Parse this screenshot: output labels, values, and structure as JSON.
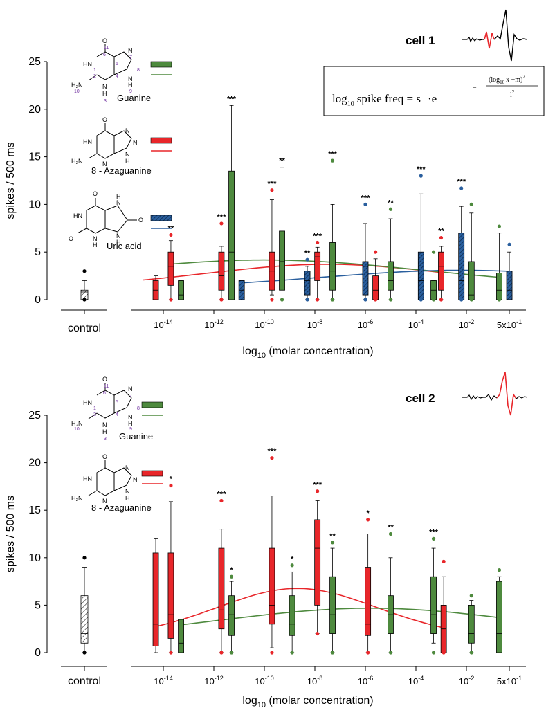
{
  "figure": {
    "equation": {
      "main": "log",
      "sub10": "10",
      "rest": "spike freq = s",
      "dot_e": "·e",
      "minus": "−",
      "num": "(log",
      "num_sub": "10",
      "num_rest": "x −m)",
      "num_sup": "2",
      "den": "l",
      "den_sup": "2"
    },
    "molecules": {
      "guanine_name": "Guanine",
      "azaguanine_name": "8 - Azaguanine",
      "uric_acid_name": "Uric acid"
    }
  },
  "series_colors": {
    "Guanine": "#4e8a3e",
    "8 - Azaguanine": "#e8262a",
    "Uric acid": "#2a5f9e"
  },
  "chart_data": [
    {
      "type": "box",
      "title": "cell 1",
      "ylabel": "spikes / 500 ms",
      "xlabel": "log10 (molar concentration)",
      "xlabel_base": "log",
      "xlabel_sub": "10",
      "xlabel_rest": " (molar concentration)",
      "ylim": [
        0,
        25
      ],
      "yticks": [
        0,
        5,
        10,
        15,
        20,
        25
      ],
      "xlim_log": [
        -15.2,
        0.2
      ],
      "xticks": [
        {
          "log": -14,
          "base": "10",
          "exp": "-14"
        },
        {
          "log": -12,
          "base": "10",
          "exp": "-12"
        },
        {
          "log": -10,
          "base": "10",
          "exp": "-10"
        },
        {
          "log": -8,
          "base": "10",
          "exp": "-8"
        },
        {
          "log": -6,
          "base": "10",
          "exp": "-6"
        },
        {
          "log": -4,
          "base": "10",
          "exp": "-4"
        },
        {
          "log": -2,
          "base": "10",
          "exp": "-2"
        },
        {
          "log": -0.301,
          "base": "5x10",
          "exp": "-1"
        }
      ],
      "control": {
        "label": "control",
        "q1": 0,
        "median": 0.8,
        "q3": 1,
        "whisker_low": 0,
        "whisker_high": 2,
        "outliers": [
          3,
          0
        ]
      },
      "boxes": [
        {
          "series": "8 - Azaguanine",
          "x": -14.3,
          "q1": 0,
          "median": 1,
          "q3": 2,
          "whisker_low": 0,
          "whisker_high": 2.5,
          "outliers": [],
          "sig": ""
        },
        {
          "series": "8 - Azaguanine",
          "x": -13.7,
          "q1": 1.5,
          "median": 3.5,
          "q3": 5,
          "whisker_low": 0,
          "whisker_high": 6.2,
          "outliers": [
            6.8,
            0
          ],
          "sig": "**"
        },
        {
          "series": "Guanine",
          "x": -13.3,
          "q1": 0,
          "median": 0.5,
          "q3": 2,
          "whisker_low": 0,
          "whisker_high": 2,
          "outliers": [],
          "sig": ""
        },
        {
          "series": "8 - Azaguanine",
          "x": -11.7,
          "q1": 1,
          "median": 2.5,
          "q3": 5,
          "whisker_low": 0,
          "whisker_high": 5.6,
          "outliers": [
            8,
            0
          ],
          "sig": "***"
        },
        {
          "series": "Guanine",
          "x": -11.3,
          "q1": 0,
          "median": 5,
          "q3": 13.5,
          "whisker_low": 0,
          "whisker_high": 20.4,
          "outliers": [],
          "sig": "***"
        },
        {
          "series": "Uric acid",
          "x": -10.9,
          "q1": 0,
          "median": 1,
          "q3": 2,
          "whisker_low": 0,
          "whisker_high": 2,
          "outliers": [],
          "sig": ""
        },
        {
          "series": "8 - Azaguanine",
          "x": -9.7,
          "q1": 1,
          "median": 3,
          "q3": 5,
          "whisker_low": 0.5,
          "whisker_high": 10.5,
          "outliers": [
            11.5,
            0
          ],
          "sig": "***"
        },
        {
          "series": "Guanine",
          "x": -9.3,
          "q1": 1,
          "median": 4,
          "q3": 7.2,
          "whisker_low": 0,
          "whisker_high": 13.9,
          "outliers": [
            0
          ],
          "sig": "**"
        },
        {
          "series": "Uric acid",
          "x": -8.3,
          "q1": 0.5,
          "median": 2,
          "q3": 3,
          "whisker_low": 0,
          "whisker_high": 3.5,
          "outliers": [
            4.2,
            0
          ],
          "sig": "**"
        },
        {
          "series": "8 - Azaguanine",
          "x": -7.9,
          "q1": 2,
          "median": 4.5,
          "q3": 5,
          "whisker_low": 0,
          "whisker_high": 5.5,
          "outliers": [
            6,
            0
          ],
          "sig": "***"
        },
        {
          "series": "Guanine",
          "x": -7.3,
          "q1": 1,
          "median": 3,
          "q3": 6,
          "whisker_low": 0,
          "whisker_high": 10,
          "outliers": [
            14.6,
            0
          ],
          "sig": "***"
        },
        {
          "series": "Uric acid",
          "x": -6.0,
          "q1": 0.5,
          "median": 3.5,
          "q3": 4,
          "whisker_low": 0,
          "whisker_high": 8,
          "outliers": [
            10,
            0
          ],
          "sig": "***"
        },
        {
          "series": "8 - Azaguanine",
          "x": -5.6,
          "q1": 0,
          "median": 1,
          "q3": 2.5,
          "whisker_low": 0,
          "whisker_high": 4.3,
          "outliers": [
            5,
            0
          ],
          "sig": ""
        },
        {
          "series": "Guanine",
          "x": -5.0,
          "q1": 1,
          "median": 2,
          "q3": 4,
          "whisker_low": 0,
          "whisker_high": 8.5,
          "outliers": [
            9.5,
            0
          ],
          "sig": "**"
        },
        {
          "series": "Uric acid",
          "x": -3.8,
          "q1": 0,
          "median": 2,
          "q3": 5,
          "whisker_low": 0,
          "whisker_high": 11.1,
          "outliers": [
            13,
            0
          ],
          "sig": "***"
        },
        {
          "series": "Guanine",
          "x": -3.3,
          "q1": 0,
          "median": 1,
          "q3": 2,
          "whisker_low": 0,
          "whisker_high": 2,
          "outliers": [
            5,
            0
          ],
          "sig": ""
        },
        {
          "series": "8 - Azaguanine",
          "x": -3.0,
          "q1": 1,
          "median": 3.5,
          "q3": 5,
          "whisker_low": 0,
          "whisker_high": 5.6,
          "outliers": [
            6.5,
            0
          ],
          "sig": "**"
        },
        {
          "series": "Uric acid",
          "x": -2.2,
          "q1": 0,
          "median": 2,
          "q3": 7,
          "whisker_low": 0,
          "whisker_high": 9.8,
          "outliers": [
            11.7,
            0
          ],
          "sig": "***"
        },
        {
          "series": "Guanine",
          "x": -1.8,
          "q1": 0,
          "median": 0.5,
          "q3": 4,
          "whisker_low": 0,
          "whisker_high": 9.1,
          "outliers": [
            10,
            0
          ],
          "sig": ""
        },
        {
          "series": "Guanine",
          "x": -0.7,
          "q1": 0,
          "median": 1,
          "q3": 2.8,
          "whisker_low": 0,
          "whisker_high": 7,
          "outliers": [
            7.7,
            0
          ],
          "sig": ""
        },
        {
          "series": "Uric acid",
          "x": -0.3,
          "q1": 0,
          "median": 1,
          "q3": 3,
          "whisker_low": 0,
          "whisker_high": 5,
          "outliers": [
            5.8
          ],
          "sig": ""
        }
      ],
      "fits": [
        {
          "series": "8 - Azaguanine",
          "s": 0.57,
          "m": -7.5,
          "l": 9.5,
          "x_range": [
            -14.8,
            -3.0
          ]
        },
        {
          "series": "Guanine",
          "s": 0.62,
          "m": -10.0,
          "l": 13.0,
          "x_range": [
            -13.7,
            -0.7
          ]
        },
        {
          "series": "Uric acid",
          "s": 0.49,
          "m": -2.2,
          "l": 10.5,
          "x_range": [
            -10.9,
            -0.3
          ]
        }
      ],
      "legend": [
        {
          "series": "Guanine"
        },
        {
          "series": "8 - Azaguanine"
        },
        {
          "series": "Uric acid"
        }
      ]
    },
    {
      "type": "box",
      "title": "cell 2",
      "ylabel": "spikes / 500 ms",
      "xlabel": "log10 (molar concentration)",
      "xlabel_base": "log",
      "xlabel_sub": "10",
      "xlabel_rest": " (molar concentration)",
      "ylim": [
        0,
        25
      ],
      "yticks": [
        0,
        5,
        10,
        15,
        20,
        25
      ],
      "xlim_log": [
        -15.2,
        0.2
      ],
      "xticks": [
        {
          "log": -14,
          "base": "10",
          "exp": "-14"
        },
        {
          "log": -12,
          "base": "10",
          "exp": "-12"
        },
        {
          "log": -10,
          "base": "10",
          "exp": "-10"
        },
        {
          "log": -8,
          "base": "10",
          "exp": "-8"
        },
        {
          "log": -6,
          "base": "10",
          "exp": "-6"
        },
        {
          "log": -4,
          "base": "10",
          "exp": "-4"
        },
        {
          "log": -2,
          "base": "10",
          "exp": "-2"
        },
        {
          "log": -0.301,
          "base": "5x10",
          "exp": "-1"
        }
      ],
      "control": {
        "label": "control",
        "q1": 1,
        "median": 2,
        "q3": 6,
        "whisker_low": 0,
        "whisker_high": 9,
        "outliers": [
          10,
          0
        ]
      },
      "boxes": [
        {
          "series": "8 - Azaguanine",
          "x": -14.3,
          "q1": 0.7,
          "median": 3,
          "q3": 10.5,
          "whisker_low": 0,
          "whisker_high": 12,
          "outliers": [],
          "sig": ""
        },
        {
          "series": "8 - Azaguanine",
          "x": -13.7,
          "q1": 1.5,
          "median": 4,
          "q3": 10.5,
          "whisker_low": 0,
          "whisker_high": 15.9,
          "outliers": [
            17.6,
            0
          ],
          "sig": "*"
        },
        {
          "series": "Guanine",
          "x": -13.3,
          "q1": 0,
          "median": 1,
          "q3": 3.5,
          "whisker_low": 0,
          "whisker_high": 3.5,
          "outliers": [],
          "sig": ""
        },
        {
          "series": "8 - Azaguanine",
          "x": -11.7,
          "q1": 2.5,
          "median": 4.5,
          "q3": 11,
          "whisker_low": 0,
          "whisker_high": 13,
          "outliers": [
            16,
            0
          ],
          "sig": "***"
        },
        {
          "series": "Guanine",
          "x": -11.3,
          "q1": 1.8,
          "median": 4,
          "q3": 6,
          "whisker_low": 0,
          "whisker_high": 7.5,
          "outliers": [
            8,
            0
          ],
          "sig": "*"
        },
        {
          "series": "8 - Azaguanine",
          "x": -9.7,
          "q1": 3,
          "median": 5,
          "q3": 11,
          "whisker_low": 0.5,
          "whisker_high": 16.5,
          "outliers": [
            20.5,
            0
          ],
          "sig": "***"
        },
        {
          "series": "Guanine",
          "x": -8.9,
          "q1": 1.8,
          "median": 3,
          "q3": 6,
          "whisker_low": 0,
          "whisker_high": 8.5,
          "outliers": [
            9.2,
            0
          ],
          "sig": "*"
        },
        {
          "series": "8 - Azaguanine",
          "x": -7.9,
          "q1": 5,
          "median": 11,
          "q3": 14,
          "whisker_low": 2,
          "whisker_high": 16,
          "outliers": [
            17,
            2
          ],
          "sig": "***"
        },
        {
          "series": "Guanine",
          "x": -7.3,
          "q1": 2,
          "median": 4,
          "q3": 8,
          "whisker_low": 0,
          "whisker_high": 11,
          "outliers": [
            11.6,
            0
          ],
          "sig": "**"
        },
        {
          "series": "8 - Azaguanine",
          "x": -5.9,
          "q1": 1.8,
          "median": 3,
          "q3": 9,
          "whisker_low": 0,
          "whisker_high": 12.5,
          "outliers": [
            14,
            0
          ],
          "sig": "*"
        },
        {
          "series": "Guanine",
          "x": -5.0,
          "q1": 2,
          "median": 4,
          "q3": 6,
          "whisker_low": 0,
          "whisker_high": 10,
          "outliers": [
            12.5,
            0
          ],
          "sig": "**"
        },
        {
          "series": "Guanine",
          "x": -3.3,
          "q1": 2,
          "median": 4,
          "q3": 8,
          "whisker_low": 1,
          "whisker_high": 11,
          "outliers": [
            12,
            0
          ],
          "sig": "***"
        },
        {
          "series": "8 - Azaguanine",
          "x": -2.9,
          "q1": 0,
          "median": 2.5,
          "q3": 5,
          "whisker_low": 0,
          "whisker_high": 8,
          "outliers": [
            9.6,
            0
          ],
          "sig": ""
        },
        {
          "series": "Guanine",
          "x": -1.8,
          "q1": 1,
          "median": 2,
          "q3": 5,
          "whisker_low": 0,
          "whisker_high": 5.5,
          "outliers": [
            6,
            0
          ],
          "sig": ""
        },
        {
          "series": "Guanine",
          "x": -0.7,
          "q1": 0,
          "median": 2,
          "q3": 7.5,
          "whisker_low": 0,
          "whisker_high": 8,
          "outliers": [
            8.7
          ],
          "sig": ""
        }
      ],
      "fits": [
        {
          "series": "8 - Azaguanine",
          "s": 0.83,
          "m": -8.7,
          "l": 7.0,
          "x_range": [
            -14.3,
            -2.9
          ]
        },
        {
          "series": "Guanine",
          "s": 0.67,
          "m": -5.8,
          "l": 12.5,
          "x_range": [
            -13.3,
            -0.7
          ]
        }
      ],
      "legend": [
        {
          "series": "Guanine"
        },
        {
          "series": "8 - Azaguanine"
        }
      ]
    }
  ]
}
